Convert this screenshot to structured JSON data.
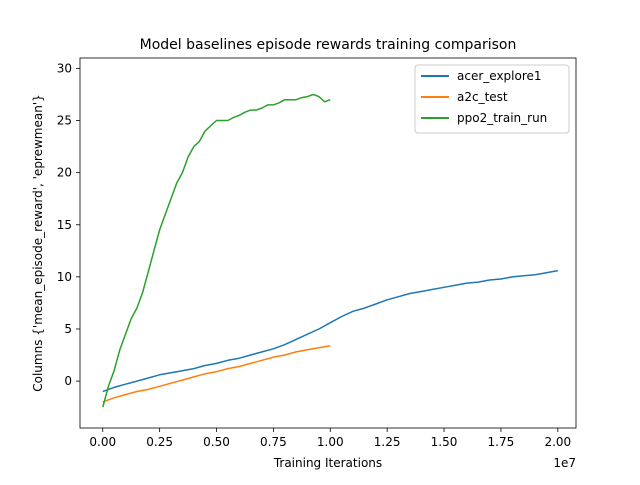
{
  "chart_data": {
    "type": "line",
    "title": "Model baselines episode rewards training comparison",
    "xlabel": "Training Iterations",
    "ylabel": "Columns {'mean_episode_reward', 'eprewmean'}",
    "x_offset_text": "1e7",
    "xlim": [
      -0.1,
      2.08
    ],
    "ylim": [
      -4.5,
      31.0
    ],
    "x_ticks": [
      0.0,
      0.25,
      0.5,
      0.75,
      1.0,
      1.25,
      1.5,
      1.75,
      2.0
    ],
    "x_tick_labels": [
      "0.00",
      "0.25",
      "0.50",
      "0.75",
      "1.00",
      "1.25",
      "1.50",
      "1.75",
      "2.00"
    ],
    "y_ticks": [
      0,
      5,
      10,
      15,
      20,
      25,
      30
    ],
    "y_tick_labels": [
      "0",
      "5",
      "10",
      "15",
      "20",
      "25",
      "30"
    ],
    "grid": false,
    "legend_position": "top-right",
    "series": [
      {
        "name": "acer_explore1",
        "color": "#1f77b4",
        "x": [
          0.0,
          0.05,
          0.1,
          0.15,
          0.2,
          0.25,
          0.3,
          0.35,
          0.4,
          0.45,
          0.5,
          0.55,
          0.6,
          0.65,
          0.7,
          0.75,
          0.8,
          0.85,
          0.9,
          0.95,
          1.0,
          1.05,
          1.1,
          1.15,
          1.2,
          1.25,
          1.3,
          1.35,
          1.4,
          1.45,
          1.5,
          1.55,
          1.6,
          1.65,
          1.7,
          1.75,
          1.8,
          1.85,
          1.9,
          1.95,
          2.0
        ],
        "values": [
          -1.0,
          -0.6,
          -0.3,
          0.0,
          0.3,
          0.6,
          0.8,
          1.0,
          1.2,
          1.5,
          1.7,
          2.0,
          2.2,
          2.5,
          2.8,
          3.1,
          3.5,
          4.0,
          4.5,
          5.0,
          5.6,
          6.2,
          6.7,
          7.0,
          7.4,
          7.8,
          8.1,
          8.4,
          8.6,
          8.8,
          9.0,
          9.2,
          9.4,
          9.5,
          9.7,
          9.8,
          10.0,
          10.1,
          10.2,
          10.4,
          10.6
        ]
      },
      {
        "name": "a2c_test",
        "color": "#ff7f0e",
        "x": [
          0.0,
          0.05,
          0.1,
          0.15,
          0.2,
          0.25,
          0.3,
          0.35,
          0.4,
          0.45,
          0.5,
          0.55,
          0.6,
          0.65,
          0.7,
          0.75,
          0.8,
          0.85,
          0.9,
          0.95,
          1.0
        ],
        "values": [
          -2.0,
          -1.6,
          -1.3,
          -1.0,
          -0.8,
          -0.5,
          -0.2,
          0.1,
          0.4,
          0.7,
          0.9,
          1.2,
          1.4,
          1.7,
          2.0,
          2.3,
          2.5,
          2.8,
          3.0,
          3.2,
          3.4
        ]
      },
      {
        "name": "ppo2_train_run",
        "color": "#2ca02c",
        "x": [
          0.0,
          0.025,
          0.05,
          0.075,
          0.1,
          0.125,
          0.15,
          0.175,
          0.2,
          0.225,
          0.25,
          0.275,
          0.3,
          0.325,
          0.35,
          0.375,
          0.4,
          0.425,
          0.45,
          0.475,
          0.5,
          0.525,
          0.55,
          0.575,
          0.6,
          0.625,
          0.65,
          0.675,
          0.7,
          0.725,
          0.75,
          0.775,
          0.8,
          0.825,
          0.85,
          0.875,
          0.9,
          0.925,
          0.95,
          0.975,
          1.0
        ],
        "values": [
          -2.5,
          -0.5,
          1.0,
          3.0,
          4.5,
          6.0,
          7.0,
          8.5,
          10.5,
          12.5,
          14.5,
          16.0,
          17.5,
          19.0,
          20.0,
          21.5,
          22.5,
          23.0,
          24.0,
          24.5,
          25.0,
          25.0,
          25.0,
          25.3,
          25.5,
          25.8,
          26.0,
          26.0,
          26.2,
          26.5,
          26.5,
          26.7,
          27.0,
          27.0,
          27.0,
          27.2,
          27.3,
          27.5,
          27.3,
          26.8,
          27.0
        ]
      }
    ]
  }
}
